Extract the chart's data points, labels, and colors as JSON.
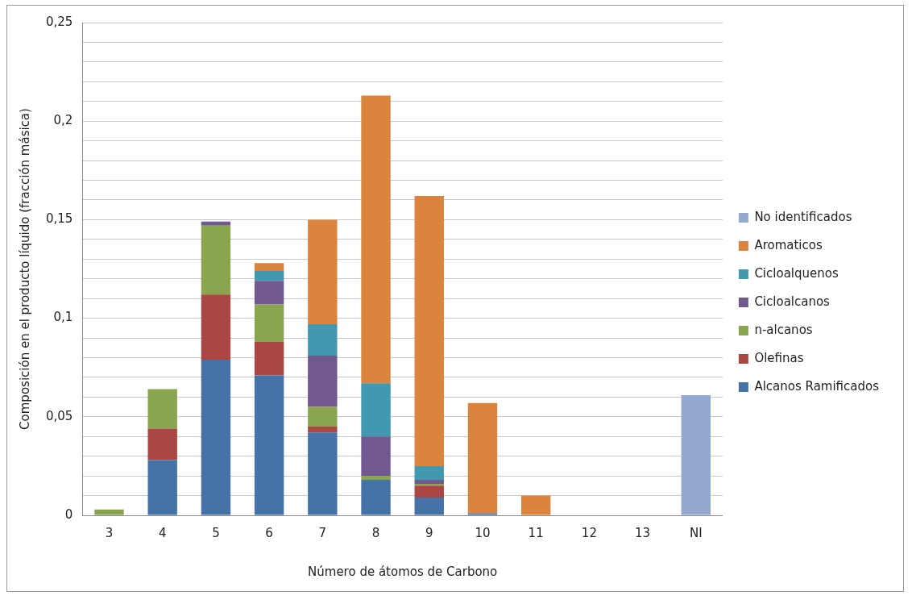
{
  "chart_data": {
    "type": "bar",
    "stacked": true,
    "xlabel": "Número de átomos de Carbono",
    "ylabel": "Composición en el producto líquido (fracción másica)",
    "categories": [
      "3",
      "4",
      "5",
      "6",
      "7",
      "8",
      "9",
      "10",
      "11",
      "12",
      "13",
      "NI"
    ],
    "series": [
      {
        "name": "Alcanos Ramificados",
        "color": "#4573a7",
        "values": [
          0,
          0.028,
          0.079,
          0.071,
          0.042,
          0.018,
          0.009,
          0.001,
          0,
          0,
          0,
          null
        ]
      },
      {
        "name": "Olefinas",
        "color": "#aa4643",
        "values": [
          0,
          0.016,
          0.033,
          0.017,
          0.003,
          0,
          0.006,
          0,
          0,
          0,
          0,
          null
        ]
      },
      {
        "name": "n-alcanos",
        "color": "#89a54e",
        "values": [
          0.003,
          0.02,
          0.035,
          0.019,
          0.01,
          0.002,
          0.001,
          0,
          0,
          0,
          0,
          null
        ]
      },
      {
        "name": "Cicloalcanos",
        "color": "#71588f",
        "values": [
          0,
          0,
          0.002,
          0.012,
          0.026,
          0.02,
          0.002,
          0,
          0,
          0,
          0,
          null
        ]
      },
      {
        "name": "Cicloalquenos",
        "color": "#4198af",
        "values": [
          0,
          0,
          0,
          0.005,
          0.016,
          0.027,
          0.007,
          0,
          0,
          0,
          0,
          null
        ]
      },
      {
        "name": "Aromaticos",
        "color": "#db843d",
        "values": [
          0,
          0,
          0,
          0.004,
          0.053,
          0.146,
          0.137,
          0.056,
          0.01,
          0,
          0,
          null
        ]
      },
      {
        "name": "No identificados",
        "color": "#93a9cf",
        "values": [
          null,
          null,
          null,
          null,
          null,
          null,
          null,
          null,
          null,
          null,
          null,
          0.061
        ]
      }
    ],
    "ylim": [
      0,
      0.25
    ],
    "yticks": [
      {
        "value": 0,
        "label": "0"
      },
      {
        "value": 0.01,
        "label": null
      },
      {
        "value": 0.02,
        "label": null
      },
      {
        "value": 0.03,
        "label": null
      },
      {
        "value": 0.04,
        "label": null
      },
      {
        "value": 0.05,
        "label": "0,05"
      },
      {
        "value": 0.06,
        "label": null
      },
      {
        "value": 0.07,
        "label": null
      },
      {
        "value": 0.08,
        "label": null
      },
      {
        "value": 0.09,
        "label": null
      },
      {
        "value": 0.1,
        "label": "0,1"
      },
      {
        "value": 0.11,
        "label": null
      },
      {
        "value": 0.12,
        "label": null
      },
      {
        "value": 0.13,
        "label": null
      },
      {
        "value": 0.14,
        "label": null
      },
      {
        "value": 0.15,
        "label": "0,15"
      },
      {
        "value": 0.16,
        "label": null
      },
      {
        "value": 0.17,
        "label": null
      },
      {
        "value": 0.18,
        "label": null
      },
      {
        "value": 0.19,
        "label": null
      },
      {
        "value": 0.2,
        "label": "0,2"
      },
      {
        "value": 0.21,
        "label": null
      },
      {
        "value": 0.22,
        "label": null
      },
      {
        "value": 0.23,
        "label": null
      },
      {
        "value": 0.24,
        "label": null
      },
      {
        "value": 0.25,
        "label": "0,25"
      }
    ],
    "grid": "y",
    "legend": "right"
  }
}
